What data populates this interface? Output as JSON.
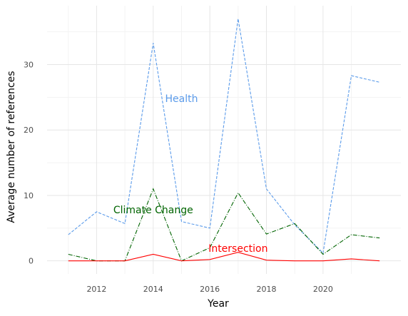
{
  "chart_data": {
    "type": "line",
    "xlabel": "Year",
    "ylabel": "Average number of references",
    "x": [
      2011,
      2012,
      2013,
      2014,
      2015,
      2016,
      2017,
      2018,
      2019,
      2020,
      2021,
      2022
    ],
    "xlim": [
      2010.25,
      2022.75
    ],
    "ylim": [
      -2,
      39
    ],
    "x_ticks": [
      2012,
      2014,
      2016,
      2018,
      2020
    ],
    "y_ticks": [
      0,
      10,
      20,
      30
    ],
    "grid": true,
    "legend": "none",
    "series": [
      {
        "name": "Health",
        "color": "#5b9bea",
        "dash": "dashed",
        "label_at": [
          2015.0,
          24.8
        ],
        "values": [
          4.0,
          7.5,
          5.7,
          33.3,
          6.0,
          5.0,
          37.0,
          11.0,
          5.5,
          1.2,
          28.3,
          27.3
        ]
      },
      {
        "name": "Climate Change",
        "color": "#006400",
        "dash": "dashdot",
        "label_at": [
          2014.0,
          7.8
        ],
        "values": [
          1.0,
          0.0,
          0.0,
          11.0,
          0.0,
          2.0,
          10.4,
          4.1,
          5.7,
          1.0,
          4.0,
          3.5
        ]
      },
      {
        "name": "Intersection",
        "color": "#ff0000",
        "dash": "solid",
        "label_at": [
          2017.0,
          1.9
        ],
        "values": [
          0.0,
          0.0,
          0.0,
          1.0,
          0.0,
          0.2,
          1.3,
          0.1,
          0.0,
          0.0,
          0.3,
          0.0
        ]
      }
    ]
  }
}
